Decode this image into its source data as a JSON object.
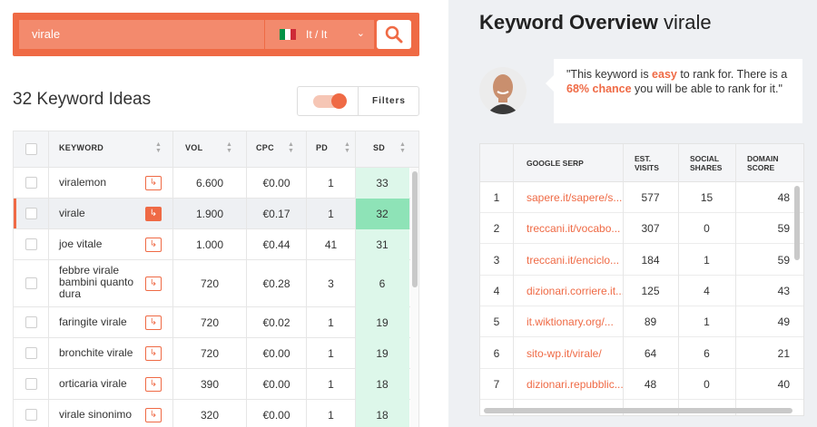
{
  "search": {
    "query": "virale",
    "language": "It / It",
    "flag_colors": [
      "#009246",
      "#ffffff",
      "#ce2b37"
    ]
  },
  "ideas": {
    "title": "32 Keyword Ideas",
    "filters_label": "Filters"
  },
  "keyword_table": {
    "headers": [
      "KEYWORD",
      "VOL",
      "CPC",
      "PD",
      "SD"
    ],
    "rows": [
      {
        "keyword": "viralemon",
        "vol": "6.600",
        "cpc": "€0.00",
        "pd": "1",
        "sd": "33"
      },
      {
        "keyword": "virale",
        "vol": "1.900",
        "cpc": "€0.17",
        "pd": "1",
        "sd": "32"
      },
      {
        "keyword": "joe vitale",
        "vol": "1.000",
        "cpc": "€0.44",
        "pd": "41",
        "sd": "31"
      },
      {
        "keyword": "febbre virale bambini quanto dura",
        "vol": "720",
        "cpc": "€0.28",
        "pd": "3",
        "sd": "6"
      },
      {
        "keyword": "faringite virale",
        "vol": "720",
        "cpc": "€0.02",
        "pd": "1",
        "sd": "19"
      },
      {
        "keyword": "bronchite virale",
        "vol": "720",
        "cpc": "€0.00",
        "pd": "1",
        "sd": "19"
      },
      {
        "keyword": "orticaria virale",
        "vol": "390",
        "cpc": "€0.00",
        "pd": "1",
        "sd": "18"
      },
      {
        "keyword": "virale sinonimo",
        "vol": "320",
        "cpc": "€0.00",
        "pd": "1",
        "sd": "18"
      }
    ],
    "selected_row": 1
  },
  "overview": {
    "title_bold": "Keyword Overview",
    "title_keyword": "virale",
    "quote_parts": [
      "\"This keyword is ",
      "easy",
      " to rank for. There is a ",
      "68% chance",
      " you will be able to rank for it.\""
    ]
  },
  "serp_table": {
    "headers": {
      "serp": "GOOGLE SERP",
      "visits": [
        "EST.",
        "VISITS"
      ],
      "shares": [
        "SOCIAL",
        "SHARES"
      ],
      "domain": [
        "DOMAIN",
        "SCORE"
      ]
    },
    "rows": [
      {
        "n": "1",
        "url": "sapere.it/sapere/s...",
        "visits": "577",
        "shares": "15",
        "score": "48"
      },
      {
        "n": "2",
        "url": "treccani.it/vocabo...",
        "visits": "307",
        "shares": "0",
        "score": "59"
      },
      {
        "n": "3",
        "url": "treccani.it/enciclo...",
        "visits": "184",
        "shares": "1",
        "score": "59"
      },
      {
        "n": "4",
        "url": "dizionari.corriere.it...",
        "visits": "125",
        "shares": "4",
        "score": "43"
      },
      {
        "n": "5",
        "url": "it.wiktionary.org/...",
        "visits": "89",
        "shares": "1",
        "score": "49"
      },
      {
        "n": "6",
        "url": "sito-wp.it/virale/",
        "visits": "64",
        "shares": "6",
        "score": "21"
      },
      {
        "n": "7",
        "url": "dizionari.repubblic...",
        "visits": "48",
        "shares": "0",
        "score": "40"
      }
    ]
  },
  "colors": {
    "accent": "#ef6a45",
    "sd_bg": "#ddf7ea",
    "sd_selected": "#8ee3b7"
  }
}
